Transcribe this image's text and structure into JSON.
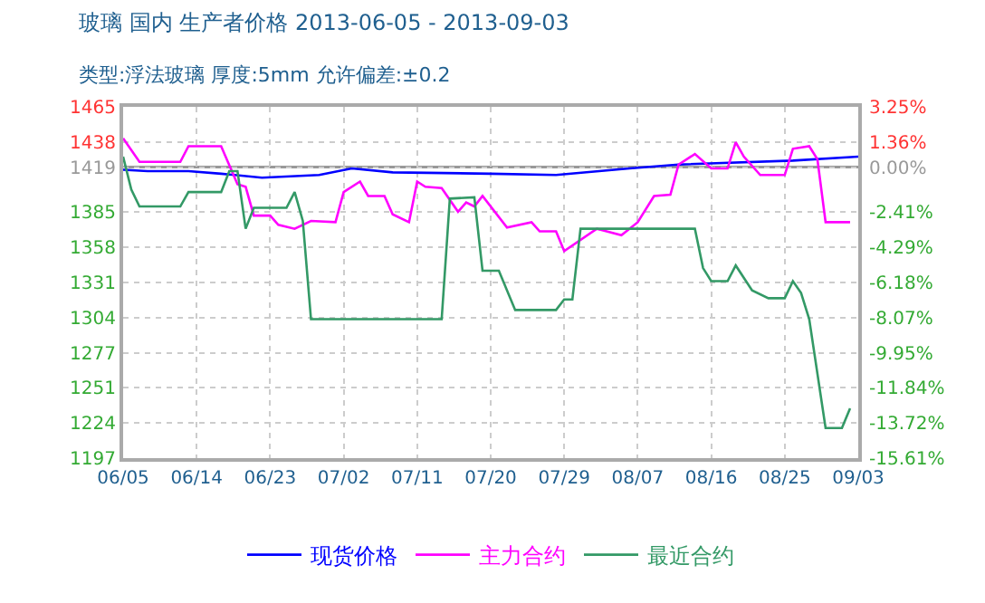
{
  "chart_data": {
    "type": "line",
    "title": "玻璃 国内 生产者价格 2013-06-05 - 2013-09-03",
    "subtitle": "类型:浮法玻璃 厚度:5mm 允许偏差:±0.2",
    "series": [
      {
        "name": "现货价格",
        "color": "#0000ff",
        "x": [
          "2013-06-05",
          "2013-06-08",
          "2013-06-13",
          "2013-06-17",
          "2013-06-22",
          "2013-06-29",
          "2013-07-03",
          "2013-07-08",
          "2013-07-20",
          "2013-07-28",
          "2013-08-06",
          "2013-08-12",
          "2013-08-26",
          "2013-09-03"
        ],
        "values": [
          1417,
          1416,
          1416,
          1414,
          1411,
          1413,
          1418,
          1415,
          1414,
          1413,
          1418,
          1421,
          1424,
          1427
        ]
      },
      {
        "name": "主力合约",
        "color": "#ff00ff",
        "x": [
          "2013-06-05",
          "2013-06-07",
          "2013-06-12",
          "2013-06-13",
          "2013-06-17",
          "2013-06-19",
          "2013-06-20",
          "2013-06-21",
          "2013-06-23",
          "2013-06-24",
          "2013-06-26",
          "2013-06-28",
          "2013-07-01",
          "2013-07-02",
          "2013-07-04",
          "2013-07-05",
          "2013-07-07",
          "2013-07-08",
          "2013-07-10",
          "2013-07-11",
          "2013-07-12",
          "2013-07-14",
          "2013-07-16",
          "2013-07-17",
          "2013-07-18",
          "2013-07-19",
          "2013-07-22",
          "2013-07-25",
          "2013-07-26",
          "2013-07-28",
          "2013-07-29",
          "2013-08-02",
          "2013-08-05",
          "2013-08-07",
          "2013-08-09",
          "2013-08-11",
          "2013-08-12",
          "2013-08-14",
          "2013-08-16",
          "2013-08-18",
          "2013-08-19",
          "2013-08-20",
          "2013-08-22",
          "2013-08-25",
          "2013-08-26",
          "2013-08-28",
          "2013-08-29",
          "2013-08-30",
          "2013-09-02"
        ],
        "values": [
          1441,
          1423,
          1423,
          1435,
          1435,
          1406,
          1404,
          1382,
          1382,
          1375,
          1372,
          1378,
          1377,
          1400,
          1408,
          1397,
          1397,
          1383,
          1377,
          1408,
          1404,
          1403,
          1385,
          1392,
          1389,
          1397,
          1373,
          1377,
          1370,
          1370,
          1355,
          1372,
          1367,
          1377,
          1397,
          1398,
          1421,
          1429,
          1418,
          1418,
          1438,
          1427,
          1413,
          1413,
          1433,
          1435,
          1425,
          1377,
          1377
        ]
      },
      {
        "name": "最近合约",
        "color": "#339966",
        "x": [
          "2013-06-05",
          "2013-06-06",
          "2013-06-07",
          "2013-06-12",
          "2013-06-13",
          "2013-06-17",
          "2013-06-18",
          "2013-06-19",
          "2013-06-20",
          "2013-06-21",
          "2013-06-25",
          "2013-06-26",
          "2013-06-27",
          "2013-06-28",
          "2013-07-14",
          "2013-07-15",
          "2013-07-18",
          "2013-07-19",
          "2013-07-21",
          "2013-07-23",
          "2013-07-28",
          "2013-07-29",
          "2013-07-30",
          "2013-07-31",
          "2013-08-14",
          "2013-08-15",
          "2013-08-16",
          "2013-08-18",
          "2013-08-19",
          "2013-08-21",
          "2013-08-23",
          "2013-08-25",
          "2013-08-26",
          "2013-08-27",
          "2013-08-28",
          "2013-08-30",
          "2013-09-01",
          "2013-09-02"
        ],
        "values": [
          1427,
          1402,
          1389,
          1389,
          1400,
          1400,
          1416,
          1416,
          1372,
          1388,
          1388,
          1400,
          1378,
          1303,
          1303,
          1395,
          1396,
          1340,
          1340,
          1310,
          1310,
          1318,
          1318,
          1372,
          1372,
          1342,
          1332,
          1332,
          1344,
          1325,
          1319,
          1319,
          1332,
          1323,
          1303,
          1220,
          1220,
          1235
        ]
      }
    ],
    "xlim": [
      "2013-06-05",
      "2013-09-03"
    ],
    "xticks": [
      {
        "value": "2013-06-05",
        "label": "06/05"
      },
      {
        "value": "2013-06-14",
        "label": "06/14"
      },
      {
        "value": "2013-06-23",
        "label": "06/23"
      },
      {
        "value": "2013-07-02",
        "label": "07/02"
      },
      {
        "value": "2013-07-11",
        "label": "07/11"
      },
      {
        "value": "2013-07-20",
        "label": "07/20"
      },
      {
        "value": "2013-07-29",
        "label": "07/29"
      },
      {
        "value": "2013-08-07",
        "label": "08/07"
      },
      {
        "value": "2013-08-16",
        "label": "08/16"
      },
      {
        "value": "2013-08-25",
        "label": "08/25"
      },
      {
        "value": "2013-09-03",
        "label": "09/03"
      }
    ],
    "ylim": [
      1197,
      1465
    ],
    "yticks": [
      1465,
      1438,
      1419,
      1385,
      1358,
      1331,
      1304,
      1277,
      1251,
      1224,
      1197
    ],
    "y2lim": [
      -15.61,
      3.25
    ],
    "y2ticks": [
      {
        "value": 3.25,
        "label": "3.25%"
      },
      {
        "value": 1.36,
        "label": "1.36%"
      },
      {
        "value": 0,
        "label": "0.00%"
      },
      {
        "value": -2.41,
        "label": "-2.41%"
      },
      {
        "value": -4.29,
        "label": "-4.29%"
      },
      {
        "value": -6.18,
        "label": "-6.18%"
      },
      {
        "value": -8.07,
        "label": "-8.07%"
      },
      {
        "value": -9.95,
        "label": "-9.95%"
      },
      {
        "value": -11.84,
        "label": "-11.84%"
      },
      {
        "value": -13.72,
        "label": "-13.72%"
      },
      {
        "value": -15.61,
        "label": "-15.61%"
      }
    ],
    "ref_lines": [
      {
        "axis": "y",
        "value": 1419,
        "color": "#999999"
      }
    ],
    "grid": true,
    "legend": "bottom",
    "line_style": "solid"
  }
}
